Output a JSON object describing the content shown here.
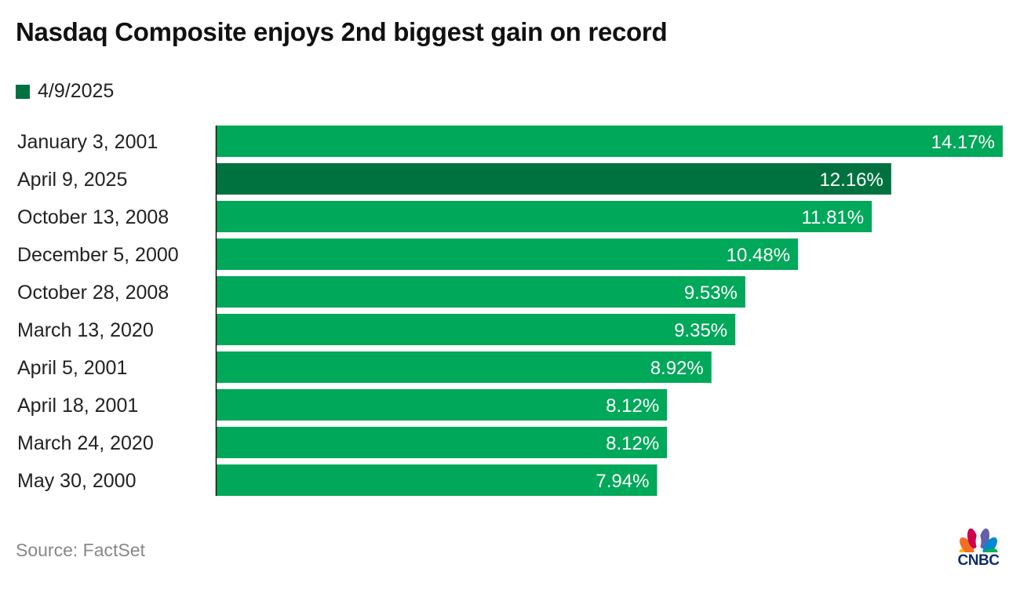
{
  "chart_data": {
    "type": "bar",
    "orientation": "horizontal",
    "title": "Nasdaq Composite enjoys 2nd biggest gain on record",
    "legend": {
      "label": "4/9/2025",
      "color": "#007240",
      "placement": "top-left"
    },
    "categories": [
      "January 3, 2001",
      "April 9, 2025",
      "October 13, 2008",
      "December 5, 2000",
      "October 28, 2008",
      "March 13, 2020",
      "April 5, 2001",
      "April 18, 2001",
      "March 24, 2020",
      "May 30, 2000"
    ],
    "values": [
      14.17,
      12.16,
      11.81,
      10.48,
      9.53,
      9.35,
      8.92,
      8.12,
      8.12,
      7.94
    ],
    "value_labels": [
      "14.17%",
      "12.16%",
      "11.81%",
      "10.48%",
      "9.53%",
      "9.35%",
      "8.92%",
      "8.12%",
      "8.12%",
      "7.94%"
    ],
    "highlight_index": 1,
    "colors": {
      "bar": "#00a859",
      "highlight": "#007240",
      "axis": "#111111"
    },
    "xlim": [
      0,
      14.17
    ],
    "grid": false
  },
  "source": "Source: FactSet",
  "logo": {
    "text": "CNBC",
    "icon": "nbc-peacock-icon"
  }
}
